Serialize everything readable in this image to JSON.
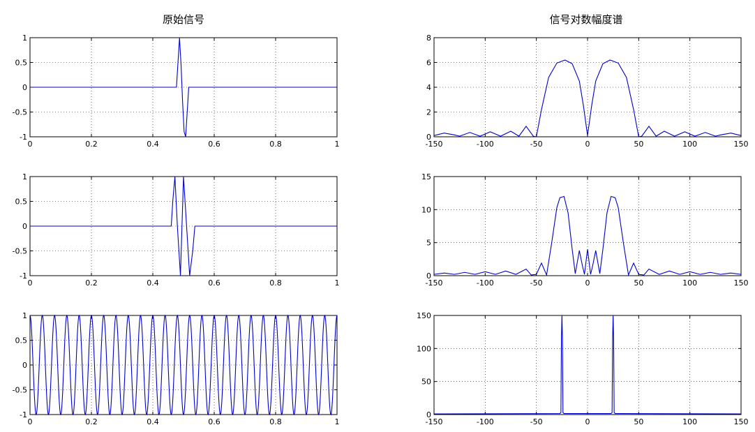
{
  "titles": {
    "left": "原始信号",
    "right": "信号对数幅度谱"
  },
  "series_color": "#0000cc",
  "chart_data": [
    {
      "id": "sig1",
      "type": "line",
      "title": "原始信号",
      "xlim": [
        0,
        1
      ],
      "ylim": [
        -1,
        1
      ],
      "xticks": [
        0,
        0.2,
        0.4,
        0.6,
        0.8,
        1
      ],
      "xtick_labels": [
        "0",
        "0.2",
        "0.4",
        "0.6",
        "0.8",
        "1"
      ],
      "yticks": [
        1,
        0.5,
        0,
        -0.5,
        -1
      ],
      "ytick_labels": [
        "1",
        "0.5",
        "0",
        "-0.5",
        "-1"
      ],
      "grid": true,
      "x": [
        0,
        0.477,
        0.482,
        0.487,
        0.492,
        0.497,
        0.502,
        0.507,
        0.512,
        0.517,
        1
      ],
      "y": [
        0,
        0,
        0.5,
        1,
        0.45,
        -0.3,
        -0.9,
        -1,
        -0.5,
        0,
        0
      ]
    },
    {
      "id": "spec1",
      "type": "line",
      "title": "信号对数幅度谱",
      "xlim": [
        -150,
        150
      ],
      "ylim": [
        0,
        8
      ],
      "xticks": [
        -150,
        -100,
        -50,
        0,
        50,
        100,
        150
      ],
      "xtick_labels": [
        "-150",
        "-100",
        "-50",
        "0",
        "50",
        "100",
        "150"
      ],
      "yticks": [
        8,
        6,
        4,
        2,
        0
      ],
      "ytick_labels": [
        "8",
        "6",
        "4",
        "2",
        "0"
      ],
      "grid": true,
      "x": [
        -150,
        -140,
        -130,
        -125,
        -115,
        -105,
        -95,
        -85,
        -75,
        -67,
        -60,
        -53,
        -50,
        -45,
        -38,
        -30,
        -22,
        -15,
        -8,
        -4,
        0,
        4,
        8,
        15,
        22,
        30,
        38,
        45,
        50,
        53,
        60,
        67,
        75,
        85,
        95,
        105,
        115,
        125,
        130,
        140,
        150
      ],
      "y": [
        0.1,
        0.3,
        0.15,
        0.05,
        0.35,
        0.05,
        0.4,
        0.05,
        0.45,
        0.05,
        0.85,
        0.05,
        0.0,
        2.2,
        4.8,
        5.95,
        6.2,
        5.9,
        4.5,
        2.5,
        0.1,
        2.5,
        4.5,
        5.9,
        6.2,
        5.95,
        4.8,
        2.2,
        0.0,
        0.05,
        0.85,
        0.05,
        0.45,
        0.05,
        0.4,
        0.05,
        0.35,
        0.05,
        0.15,
        0.3,
        0.1
      ]
    },
    {
      "id": "sig2",
      "type": "line",
      "xlim": [
        0,
        1
      ],
      "ylim": [
        -1,
        1
      ],
      "xticks": [
        0,
        0.2,
        0.4,
        0.6,
        0.8,
        1
      ],
      "xtick_labels": [
        "0",
        "0.2",
        "0.4",
        "0.6",
        "0.8",
        "1"
      ],
      "yticks": [
        1,
        0.5,
        0,
        -0.5,
        -1
      ],
      "ytick_labels": [
        "1",
        "0.5",
        "0",
        "-0.5",
        "-1"
      ],
      "grid": true,
      "x": [
        0,
        0.46,
        0.465,
        0.472,
        0.48,
        0.49,
        0.5,
        0.51,
        0.52,
        0.53,
        0.537,
        0.54,
        1
      ],
      "y": [
        0,
        0,
        0.5,
        1,
        0,
        -1,
        1,
        0,
        -1,
        -0.5,
        0,
        0,
        0
      ]
    },
    {
      "id": "spec2",
      "type": "line",
      "xlim": [
        -150,
        150
      ],
      "ylim": [
        0,
        15
      ],
      "xticks": [
        -150,
        -100,
        -50,
        0,
        50,
        100,
        150
      ],
      "xtick_labels": [
        "-150",
        "-100",
        "-50",
        "0",
        "50",
        "100",
        "150"
      ],
      "yticks": [
        15,
        10,
        5,
        0
      ],
      "ytick_labels": [
        "15",
        "10",
        "5",
        "0"
      ],
      "grid": true,
      "x": [
        -150,
        -140,
        -130,
        -120,
        -110,
        -100,
        -90,
        -80,
        -70,
        -60,
        -55,
        -50,
        -45,
        -40,
        -35,
        -30,
        -27,
        -23,
        -19,
        -15,
        -12,
        -8,
        -5,
        -3,
        0,
        3,
        5,
        8,
        12,
        15,
        19,
        23,
        27,
        30,
        35,
        40,
        45,
        50,
        55,
        60,
        70,
        80,
        90,
        100,
        110,
        120,
        130,
        140,
        150
      ],
      "y": [
        0.2,
        0.4,
        0.2,
        0.5,
        0.2,
        0.6,
        0.2,
        0.7,
        0.2,
        1.0,
        0.1,
        0.2,
        1.9,
        0.1,
        5.0,
        10.3,
        11.8,
        12.0,
        9.5,
        4.0,
        0.3,
        3.8,
        1.5,
        0.2,
        4.0,
        0.2,
        1.5,
        3.8,
        0.3,
        4.0,
        9.5,
        12.0,
        11.8,
        10.3,
        5.0,
        0.1,
        1.9,
        0.2,
        0.1,
        1.0,
        0.2,
        0.7,
        0.2,
        0.6,
        0.2,
        0.5,
        0.2,
        0.4,
        0.2
      ]
    },
    {
      "id": "sig3",
      "type": "line",
      "xlim": [
        0,
        1
      ],
      "ylim": [
        -1,
        1
      ],
      "xticks": [
        0,
        0.2,
        0.4,
        0.6,
        0.8,
        1
      ],
      "xtick_labels": [
        "0",
        "0.2",
        "0.4",
        "0.6",
        "0.8",
        "1"
      ],
      "yticks": [
        1,
        0.5,
        0,
        -0.5,
        -1
      ],
      "ytick_labels": [
        "1",
        "0.5",
        "0",
        "-0.5",
        "-1"
      ],
      "grid": true,
      "function": "cos(2*pi*25*x)",
      "frequency": 25
    },
    {
      "id": "spec3",
      "type": "line",
      "xlim": [
        -150,
        150
      ],
      "ylim": [
        0,
        150
      ],
      "xticks": [
        -150,
        -100,
        -50,
        0,
        50,
        100,
        150
      ],
      "xtick_labels": [
        "-150",
        "-100",
        "-50",
        "0",
        "50",
        "100",
        "150"
      ],
      "yticks": [
        150,
        100,
        50,
        0
      ],
      "ytick_labels": [
        "150",
        "100",
        "50",
        "0"
      ],
      "grid": true,
      "x": [
        -150,
        -27,
        -26,
        -25.5,
        -25,
        -24.5,
        -24,
        -23,
        23,
        24,
        24.5,
        25,
        25.5,
        26,
        27,
        150
      ],
      "y": [
        1,
        1.5,
        3,
        115,
        150,
        115,
        3,
        1.5,
        1.5,
        3,
        115,
        150,
        115,
        3,
        1.5,
        1
      ]
    }
  ]
}
